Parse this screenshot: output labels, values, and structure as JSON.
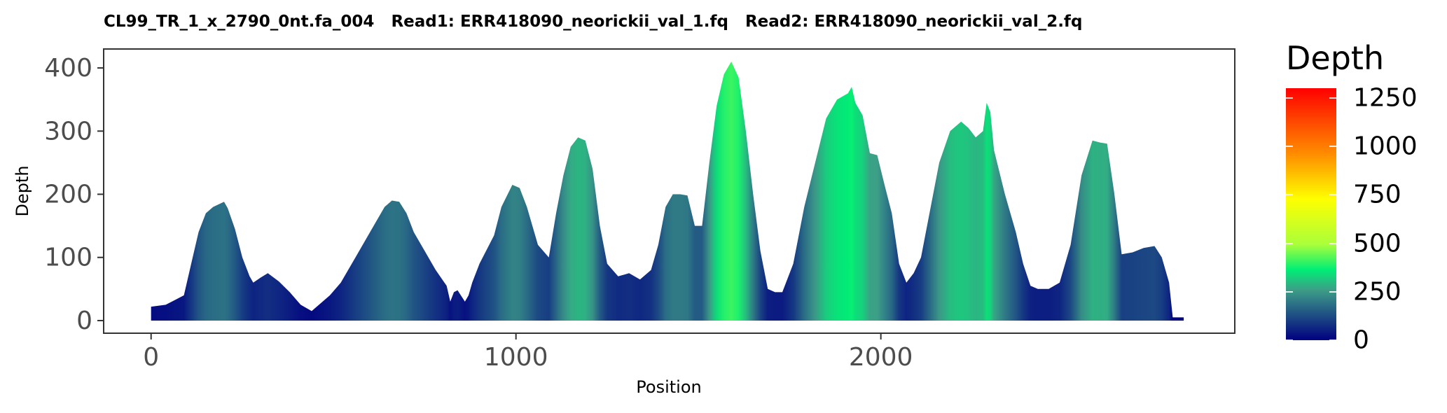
{
  "chart_data": {
    "type": "area",
    "title": "CL99_TR_1_x_2790_0nt.fa_004   Read1: ERR418090_neorickii_val_1.fq   Read2: ERR418090_neorickii_val_2.fq",
    "xlabel": "Position",
    "ylabel": "Depth",
    "xlim": [
      -130,
      2970
    ],
    "ylim": [
      -20,
      430
    ],
    "x_ticks": [
      0,
      1000,
      2000
    ],
    "x_tick_labels": [
      "0",
      "1000",
      "2000"
    ],
    "y_ticks": [
      0,
      100,
      200,
      300,
      400
    ],
    "y_tick_labels": [
      "0",
      "100",
      "200",
      "300",
      "400"
    ],
    "grid": false,
    "legend": {
      "title": "Depth",
      "placement": "right",
      "type": "colorbar",
      "range": [
        0,
        1300
      ],
      "ticks": [
        0,
        250,
        500,
        750,
        1000,
        1250
      ],
      "tick_labels": [
        "0",
        "250",
        "500",
        "750",
        "1000",
        "1250"
      ],
      "colors": [
        "#000080",
        "#3d9e87",
        "#00ee76",
        "#aaff3a",
        "#ffff00",
        "#ff8c00",
        "#ff0000"
      ]
    },
    "series": [
      {
        "x": [
          0,
          40,
          90,
          110,
          130,
          150,
          170,
          200,
          210,
          230,
          250,
          270,
          280,
          300,
          320,
          350,
          380,
          410,
          440,
          460,
          490,
          520,
          560,
          600,
          640,
          660,
          680,
          700,
          720,
          750,
          780,
          810,
          820,
          830,
          840,
          860,
          870,
          880,
          900,
          940,
          960,
          990,
          1010,
          1030,
          1060,
          1090,
          1110,
          1130,
          1150,
          1170,
          1190,
          1210,
          1230,
          1250,
          1280,
          1310,
          1340,
          1370,
          1390,
          1410,
          1430,
          1450,
          1470,
          1490,
          1510,
          1530,
          1550,
          1570,
          1590,
          1610,
          1630,
          1650,
          1670,
          1690,
          1710,
          1730,
          1760,
          1790,
          1820,
          1850,
          1880,
          1910,
          1920,
          1930,
          1950,
          1970,
          1990,
          2010,
          2030,
          2050,
          2070,
          2090,
          2110,
          2130,
          2160,
          2190,
          2220,
          2240,
          2260,
          2280,
          2290,
          2300,
          2310,
          2340,
          2370,
          2390,
          2410,
          2430,
          2460,
          2490,
          2520,
          2550,
          2580,
          2600,
          2620,
          2640,
          2660,
          2690,
          2720,
          2750,
          2770,
          2790,
          2800,
          2830
        ],
        "y": [
          22,
          25,
          40,
          90,
          140,
          170,
          180,
          188,
          178,
          145,
          100,
          70,
          60,
          68,
          75,
          62,
          45,
          25,
          15,
          25,
          40,
          60,
          100,
          140,
          180,
          190,
          188,
          170,
          140,
          110,
          80,
          55,
          30,
          45,
          48,
          30,
          40,
          60,
          90,
          135,
          180,
          215,
          210,
          180,
          120,
          100,
          170,
          230,
          275,
          290,
          285,
          240,
          150,
          90,
          70,
          75,
          65,
          80,
          120,
          180,
          200,
          200,
          198,
          150,
          150,
          250,
          340,
          390,
          410,
          385,
          300,
          200,
          110,
          50,
          45,
          45,
          90,
          180,
          250,
          320,
          350,
          360,
          370,
          345,
          325,
          265,
          262,
          215,
          170,
          90,
          60,
          75,
          100,
          160,
          250,
          300,
          315,
          305,
          290,
          300,
          345,
          330,
          270,
          200,
          140,
          90,
          55,
          50,
          50,
          60,
          120,
          230,
          285,
          282,
          280,
          200,
          105,
          108,
          115,
          118,
          100,
          60,
          5,
          5
        ]
      }
    ]
  }
}
